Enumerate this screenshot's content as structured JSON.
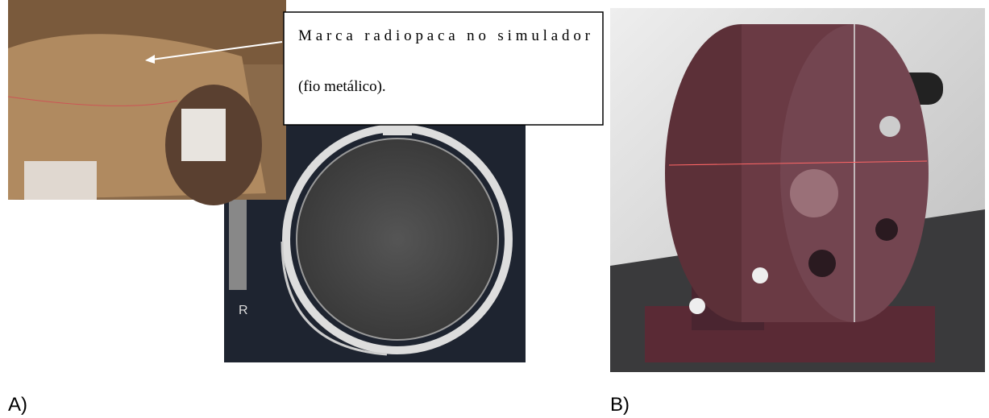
{
  "figure": {
    "callout": {
      "lines": [
        "Marca radiopaca no simulador",
        "(fio metálico)."
      ]
    },
    "ct_marker": "R",
    "labels": [
      "A)",
      "B)"
    ]
  }
}
